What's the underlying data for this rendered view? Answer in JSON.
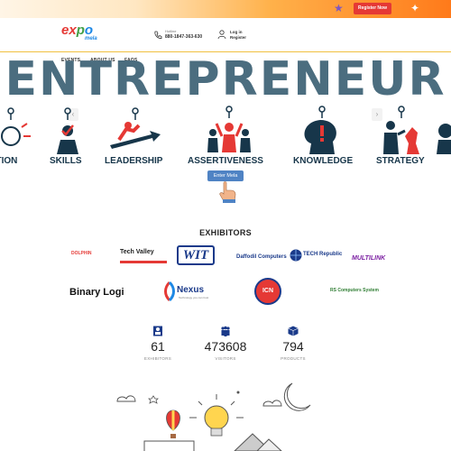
{
  "topbar": {
    "register_label": "Register Now",
    "decorations": [
      "star-icon",
      "confetti-icon"
    ]
  },
  "header": {
    "logo": {
      "part1": "ex",
      "part2": "p",
      "part3": "o",
      "sub": "mela"
    },
    "hotline": {
      "label": "Hotline",
      "number": "880-1847-363-630"
    },
    "login": {
      "line1": "Log in",
      "line2": "Register"
    }
  },
  "nav": {
    "items": [
      "EVENTS",
      "ABOUT US",
      "FAQS"
    ]
  },
  "banner": {
    "title": "ENTREPRENEUR",
    "skills": [
      "ATION",
      "SKILLS",
      "LEADERSHIP",
      "ASSERTIVENESS",
      "KNOWLEDGE",
      "STRATEGY"
    ],
    "enter_label": "Enter Mela"
  },
  "exhibitors": {
    "title": "EXHIBITORS",
    "logos": [
      "DOLPHIN",
      "Tech Valley",
      "WIT",
      "Daffodil Computers",
      "TECH Republic",
      "MULTILINK",
      "Binary Logi",
      "Nexus",
      "ICN",
      "RS Computers System"
    ],
    "taglines": {
      "nexus": "Technology you can trust"
    }
  },
  "stats": [
    {
      "value": "61",
      "label": "EXHIBITORS",
      "icon": "exhibitor-icon"
    },
    {
      "value": "473608",
      "label": "VISITORS",
      "icon": "visitors-icon"
    },
    {
      "value": "794",
      "label": "PRODUCTS",
      "icon": "products-icon"
    }
  ],
  "colors": {
    "accent": "#e53935",
    "title": "#4b6d7f",
    "skill_text": "#17364a",
    "button": "#4f83c4",
    "navy": "#1a3a8a"
  }
}
